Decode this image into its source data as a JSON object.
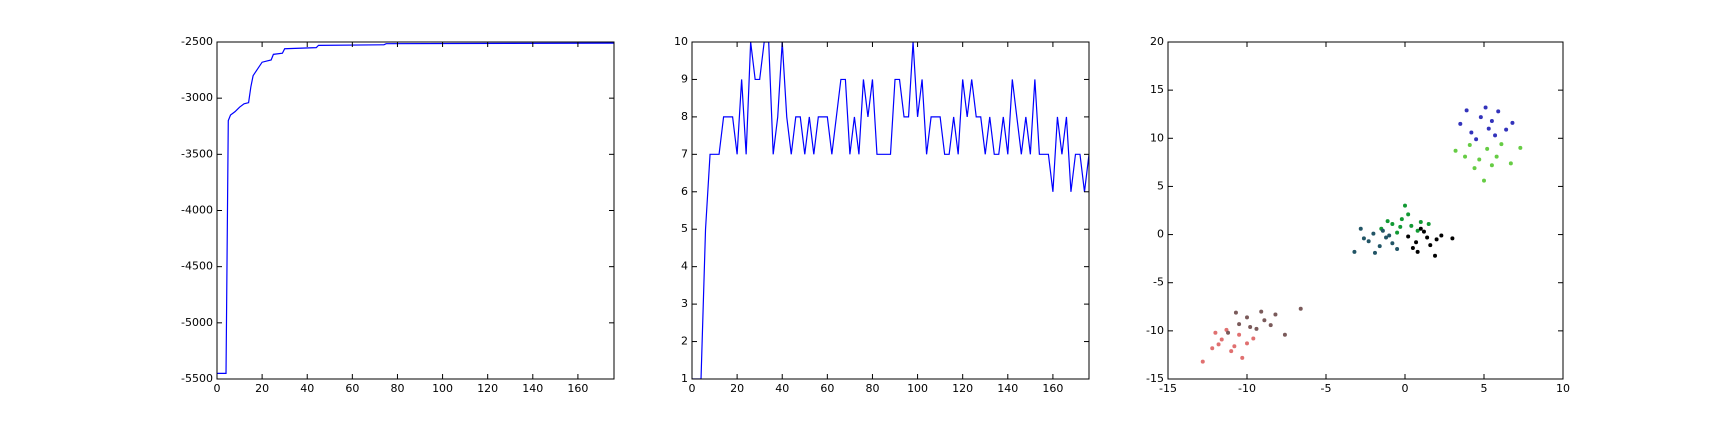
{
  "chart_data": [
    {
      "type": "line",
      "color": "#0000ff",
      "x": [
        0,
        4,
        5,
        6,
        8,
        10,
        12,
        14,
        15,
        16,
        18,
        20,
        22,
        24,
        25,
        29,
        30,
        44,
        45,
        74,
        75,
        176
      ],
      "values": [
        -5450,
        -5450,
        -3200,
        -3150,
        -3120,
        -3080,
        -3050,
        -3040,
        -2900,
        -2800,
        -2740,
        -2680,
        -2670,
        -2660,
        -2610,
        -2600,
        -2560,
        -2550,
        -2530,
        -2525,
        -2515,
        -2510
      ],
      "xlim": [
        0,
        176
      ],
      "xticks": [
        0,
        20,
        40,
        60,
        80,
        100,
        120,
        140,
        160
      ],
      "ylim": [
        -5500,
        -2500
      ],
      "yticks": [
        -5500,
        -5000,
        -4500,
        -4000,
        -3500,
        -3000,
        -2500
      ]
    },
    {
      "type": "line",
      "color": "#0000ff",
      "x": [
        0,
        2,
        4,
        6,
        8,
        10,
        12,
        14,
        16,
        18,
        20,
        22,
        24,
        26,
        28,
        30,
        32,
        34,
        36,
        38,
        40,
        42,
        44,
        46,
        48,
        50,
        52,
        54,
        56,
        58,
        60,
        62,
        64,
        66,
        68,
        70,
        72,
        74,
        76,
        78,
        80,
        82,
        84,
        86,
        88,
        90,
        92,
        94,
        96,
        98,
        100,
        102,
        104,
        106,
        108,
        110,
        112,
        114,
        116,
        118,
        120,
        122,
        124,
        126,
        128,
        130,
        132,
        134,
        136,
        138,
        140,
        142,
        144,
        146,
        148,
        150,
        152,
        154,
        156,
        158,
        160,
        162,
        164,
        166,
        168,
        170,
        172,
        174,
        176
      ],
      "values": [
        1,
        1,
        1,
        5,
        7,
        7,
        7,
        8,
        8,
        8,
        7,
        9,
        7,
        10,
        9,
        9,
        10,
        10,
        7,
        8,
        10,
        8,
        7,
        8,
        8,
        7,
        8,
        7,
        8,
        8,
        8,
        7,
        8,
        9,
        9,
        7,
        8,
        7,
        9,
        8,
        9,
        7,
        7,
        7,
        7,
        9,
        9,
        8,
        8,
        10,
        8,
        9,
        7,
        8,
        8,
        8,
        7,
        7,
        8,
        7,
        9,
        8,
        9,
        8,
        8,
        7,
        8,
        7,
        7,
        8,
        7,
        9,
        8,
        7,
        8,
        7,
        9,
        7,
        7,
        7,
        6,
        8,
        7,
        8,
        6,
        7,
        7,
        6,
        7
      ],
      "xlim": [
        0,
        176
      ],
      "xticks": [
        0,
        20,
        40,
        60,
        80,
        100,
        120,
        140,
        160
      ],
      "ylim": [
        1,
        10
      ],
      "yticks": [
        1,
        2,
        3,
        4,
        5,
        6,
        7,
        8,
        9,
        10
      ]
    },
    {
      "type": "scatter",
      "xlim": [
        -15,
        10
      ],
      "xticks": [
        -15,
        -10,
        -5,
        0,
        5,
        10
      ],
      "ylim": [
        -15,
        20
      ],
      "yticks": [
        -15,
        -10,
        -5,
        0,
        5,
        10,
        15,
        20
      ],
      "series": [
        {
          "color": "#3333bb",
          "x": [
            3.5,
            4.2,
            4.8,
            5.3,
            5.9,
            6.4,
            4.5,
            5.1,
            5.7,
            6.8,
            3.9,
            5.5
          ],
          "values": [
            11.5,
            10.6,
            12.2,
            11.0,
            12.8,
            10.9,
            9.9,
            13.2,
            10.3,
            11.6,
            12.9,
            11.8
          ]
        },
        {
          "color": "#66cc44",
          "x": [
            3.2,
            4.1,
            4.7,
            5.2,
            6.1,
            6.7,
            4.4,
            5.8,
            5.0,
            7.3,
            3.8,
            5.5
          ],
          "values": [
            8.7,
            9.3,
            7.8,
            8.9,
            9.4,
            7.4,
            6.9,
            8.1,
            5.6,
            9.0,
            8.1,
            7.2
          ]
        },
        {
          "color": "#119933",
          "x": [
            -1.5,
            -0.8,
            -0.2,
            0.4,
            1.0,
            -0.5,
            0.2,
            0.8,
            -1.1,
            0.0,
            1.5,
            -0.3
          ],
          "values": [
            0.6,
            1.1,
            1.6,
            0.9,
            1.3,
            0.2,
            2.1,
            0.4,
            1.4,
            3.0,
            1.1,
            0.8
          ]
        },
        {
          "color": "#225566",
          "x": [
            -3.2,
            -2.6,
            -2.0,
            -1.6,
            -1.2,
            -0.8,
            -2.3,
            -1.4,
            -0.5,
            -1.9,
            -2.8,
            -1.0
          ],
          "values": [
            -1.8,
            -0.4,
            0.1,
            -1.2,
            -0.3,
            -0.9,
            -0.7,
            0.4,
            -1.5,
            -1.9,
            0.6,
            -0.1
          ]
        },
        {
          "color": "#000000",
          "x": [
            0.2,
            0.7,
            1.2,
            1.6,
            2.0,
            0.5,
            1.0,
            1.4,
            2.3,
            0.8,
            3.0,
            1.9
          ],
          "values": [
            -0.2,
            -0.8,
            0.3,
            -1.1,
            -0.5,
            -1.4,
            0.6,
            -0.3,
            -0.1,
            -1.8,
            -0.4,
            -2.2
          ]
        },
        {
          "color": "#e07070",
          "x": [
            -12.8,
            -12.2,
            -11.6,
            -11.0,
            -10.5,
            -10.0,
            -11.3,
            -10.8,
            -9.6,
            -12.0,
            -10.3,
            -11.8
          ],
          "values": [
            -13.2,
            -11.8,
            -10.9,
            -12.1,
            -10.4,
            -11.3,
            -9.9,
            -11.6,
            -10.8,
            -10.2,
            -12.8,
            -11.4
          ]
        },
        {
          "color": "#7a5a5a",
          "x": [
            -11.2,
            -10.5,
            -10.0,
            -9.4,
            -8.9,
            -8.2,
            -7.6,
            -9.8,
            -9.1,
            -8.5,
            -10.7,
            -6.6
          ],
          "values": [
            -10.2,
            -9.3,
            -8.6,
            -9.8,
            -8.9,
            -8.3,
            -10.4,
            -9.6,
            -8.0,
            -9.4,
            -8.1,
            -7.7
          ]
        }
      ]
    }
  ]
}
